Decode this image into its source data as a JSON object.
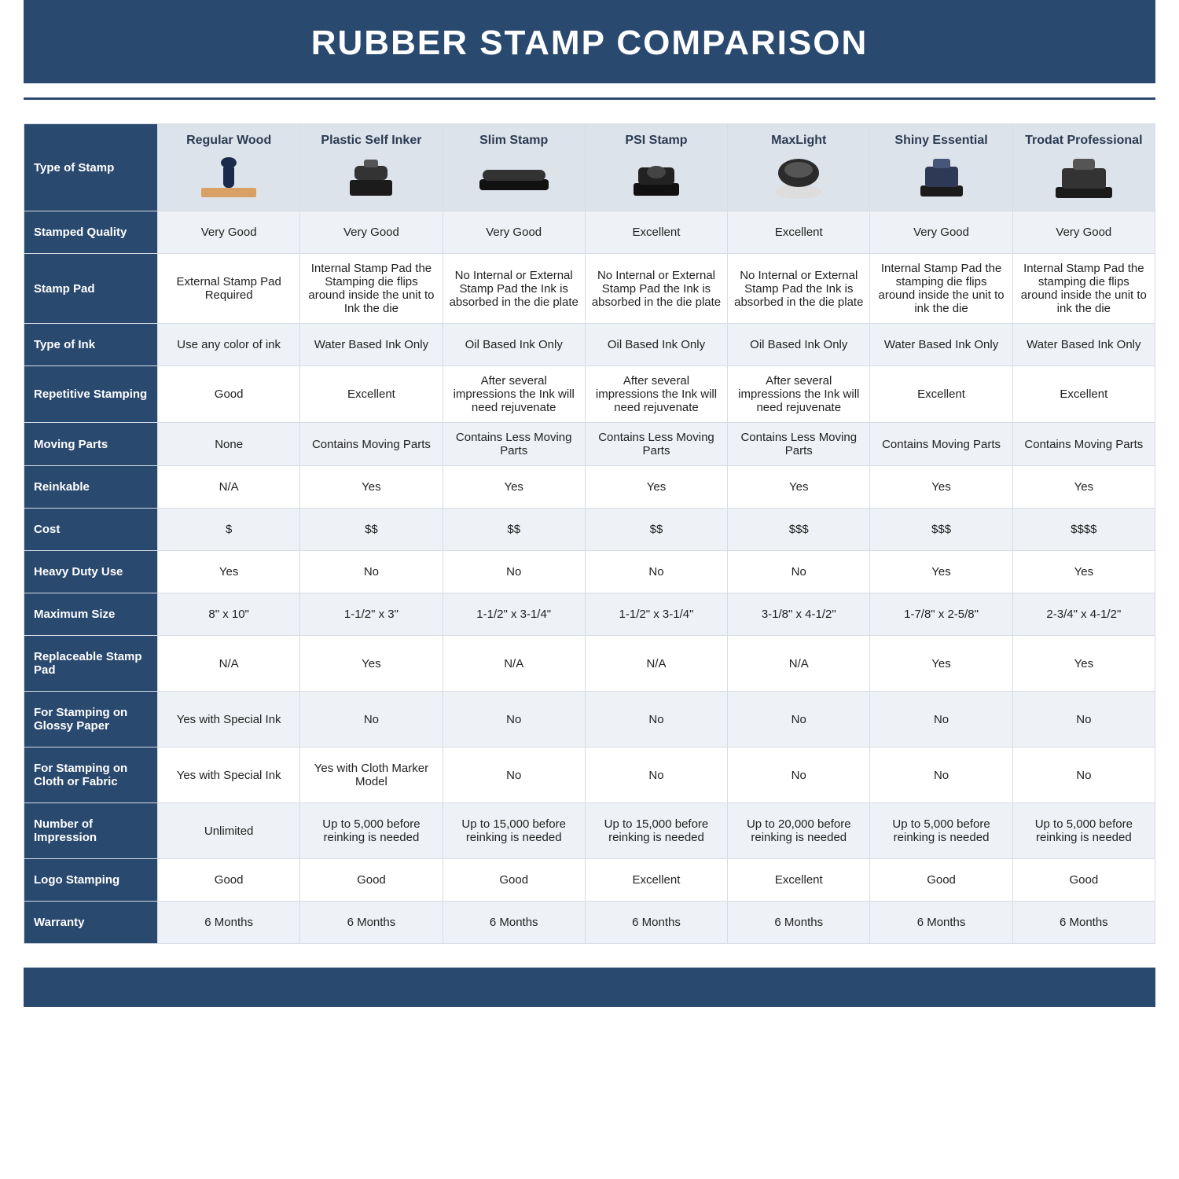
{
  "title": "RUBBER STAMP COMPARISON",
  "colors": {
    "brand": "#2a496f",
    "header_bg": "#dde3ea",
    "shade_bg": "#eef1f5",
    "border": "#d6dde5",
    "text": "#222222",
    "header_text": "#2a3b52"
  },
  "columns": [
    "Regular Wood",
    "Plastic Self Inker",
    "Slim Stamp",
    "PSI Stamp",
    "MaxLight",
    "Shiny Essential",
    "Trodat Professional"
  ],
  "type_of_stamp_label": "Type of Stamp",
  "stamp_icons": [
    "wood-handle-stamp-icon",
    "self-inker-stamp-icon",
    "slim-stamp-icon",
    "psi-stamp-icon",
    "maxlight-round-stamp-icon",
    "shiny-essential-stamp-icon",
    "trodat-professional-stamp-icon"
  ],
  "rows": [
    {
      "label": "Stamped Quality",
      "shade": true,
      "cells": [
        "Very Good",
        "Very Good",
        "Very Good",
        "Excellent",
        "Excellent",
        "Very Good",
        "Very Good"
      ]
    },
    {
      "label": "Stamp Pad",
      "shade": false,
      "cells": [
        "External Stamp Pad Required",
        "Internal Stamp Pad the Stamping die flips around inside the unit to Ink the die",
        "No Internal or External Stamp Pad the Ink is absorbed in the die plate",
        "No Internal or External Stamp Pad the Ink is absorbed in the die plate",
        "No Internal or External Stamp Pad the Ink is absorbed in the die plate",
        "Internal Stamp Pad the stamping die flips around inside the unit to ink the die",
        "Internal Stamp Pad the stamping die flips around inside the unit to ink the die"
      ]
    },
    {
      "label": "Type of Ink",
      "shade": true,
      "cells": [
        "Use any color of ink",
        "Water Based Ink Only",
        "Oil Based Ink Only",
        "Oil Based Ink Only",
        "Oil Based Ink Only",
        "Water Based Ink Only",
        "Water Based Ink Only"
      ]
    },
    {
      "label": "Repetitive Stamping",
      "shade": false,
      "cells": [
        "Good",
        "Excellent",
        "After several impressions the Ink will need rejuvenate",
        "After several impressions the Ink will need rejuvenate",
        "After several impressions the Ink will need rejuvenate",
        "Excellent",
        "Excellent"
      ]
    },
    {
      "label": "Moving Parts",
      "shade": true,
      "cells": [
        "None",
        "Contains Moving Parts",
        "Contains Less Moving Parts",
        "Contains Less Moving Parts",
        "Contains Less Moving Parts",
        "Contains Moving Parts",
        "Contains Moving Parts"
      ]
    },
    {
      "label": "Reinkable",
      "shade": false,
      "cells": [
        "N/A",
        "Yes",
        "Yes",
        "Yes",
        "Yes",
        "Yes",
        "Yes"
      ]
    },
    {
      "label": "Cost",
      "shade": true,
      "cells": [
        "$",
        "$$",
        "$$",
        "$$",
        "$$$",
        "$$$",
        "$$$$"
      ]
    },
    {
      "label": "Heavy Duty Use",
      "shade": false,
      "cells": [
        "Yes",
        "No",
        "No",
        "No",
        "No",
        "Yes",
        "Yes"
      ]
    },
    {
      "label": "Maximum Size",
      "shade": true,
      "cells": [
        "8\" x 10\"",
        "1-1/2\" x 3\"",
        "1-1/2\" x 3-1/4\"",
        "1-1/2\" x 3-1/4\"",
        "3-1/8\" x 4-1/2\"",
        "1-7/8\" x 2-5/8\"",
        "2-3/4\" x 4-1/2\""
      ]
    },
    {
      "label": "Replaceable Stamp Pad",
      "shade": false,
      "cells": [
        "N/A",
        "Yes",
        "N/A",
        "N/A",
        "N/A",
        "Yes",
        "Yes"
      ]
    },
    {
      "label": "For Stamping on Glossy Paper",
      "shade": true,
      "cells": [
        "Yes with Special Ink",
        "No",
        "No",
        "No",
        "No",
        "No",
        "No"
      ]
    },
    {
      "label": "For Stamping on Cloth or Fabric",
      "shade": false,
      "cells": [
        "Yes with Special Ink",
        "Yes with Cloth Marker Model",
        "No",
        "No",
        "No",
        "No",
        "No"
      ]
    },
    {
      "label": "Number of Impression",
      "shade": true,
      "cells": [
        "Unlimited",
        "Up to 5,000 before reinking is needed",
        "Up to 15,000 before reinking is needed",
        "Up to 15,000 before reinking is needed",
        "Up to 20,000 before reinking is needed",
        "Up to 5,000 before reinking is needed",
        "Up to 5,000 before reinking is needed"
      ]
    },
    {
      "label": "Logo Stamping",
      "shade": false,
      "cells": [
        "Good",
        "Good",
        "Good",
        "Excellent",
        "Excellent",
        "Good",
        "Good"
      ]
    },
    {
      "label": "Warranty",
      "shade": true,
      "cells": [
        "6 Months",
        "6 Months",
        "6 Months",
        "6 Months",
        "6 Months",
        "6 Months",
        "6 Months"
      ]
    }
  ]
}
